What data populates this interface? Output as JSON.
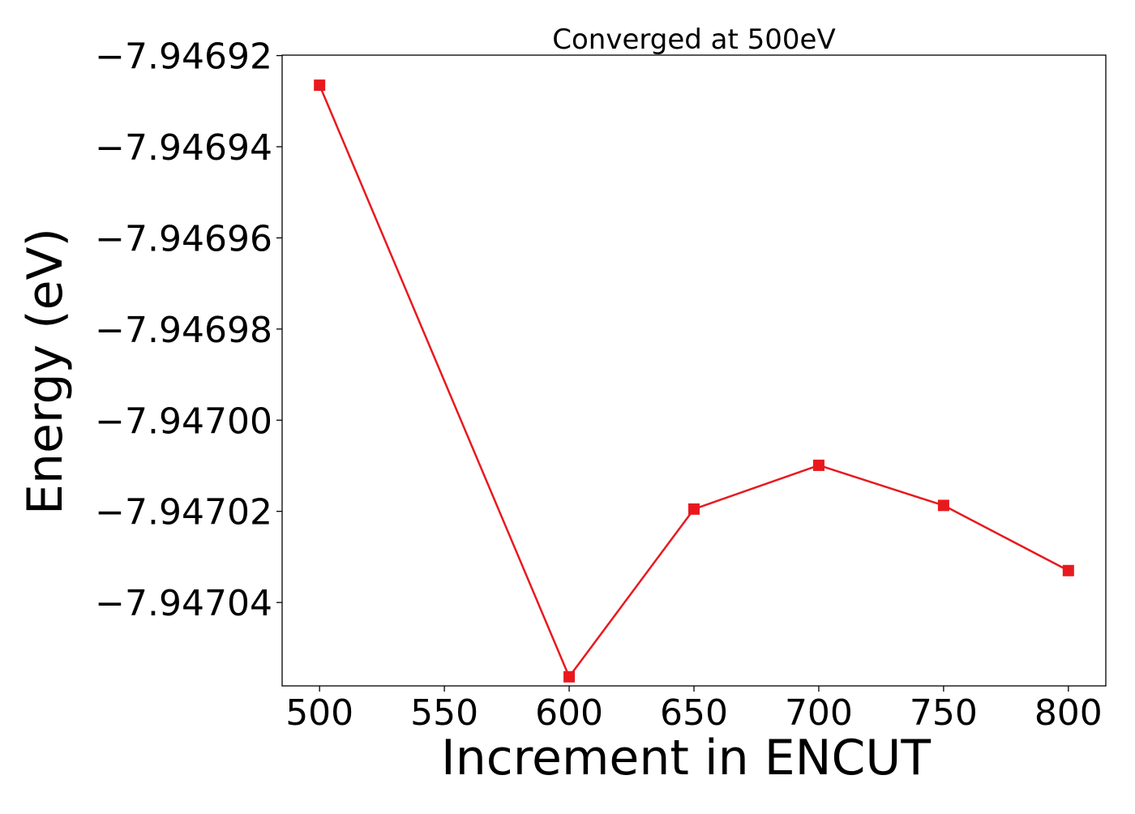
{
  "chart_data": {
    "type": "line",
    "title": "Converged at 500eV",
    "xlabel": "Increment in ENCUT",
    "ylabel": "Energy (eV)",
    "x": [
      500,
      600,
      650,
      700,
      750,
      800
    ],
    "series": [
      {
        "values": [
          -7.9469265,
          -7.9470563,
          -7.9470195,
          -7.9470099,
          -7.9470187,
          -7.947033
        ],
        "color": "#e8191e",
        "marker": "square"
      }
    ],
    "xlim": [
      485,
      815
    ],
    "ylim": [
      -7.9470583,
      -7.9469199
    ],
    "xticks": [
      500,
      550,
      600,
      650,
      700,
      750,
      800
    ],
    "xtick_labels": [
      "500",
      "550",
      "600",
      "650",
      "700",
      "750",
      "800"
    ],
    "yticks": [
      -7.94692,
      -7.94694,
      -7.94696,
      -7.94698,
      -7.947,
      -7.94702,
      -7.94704
    ],
    "ytick_labels": [
      "−7.94692",
      "−7.94694",
      "−7.94696",
      "−7.94698",
      "−7.94700",
      "−7.94702",
      "−7.94704"
    ],
    "grid": false,
    "legend": false
  }
}
